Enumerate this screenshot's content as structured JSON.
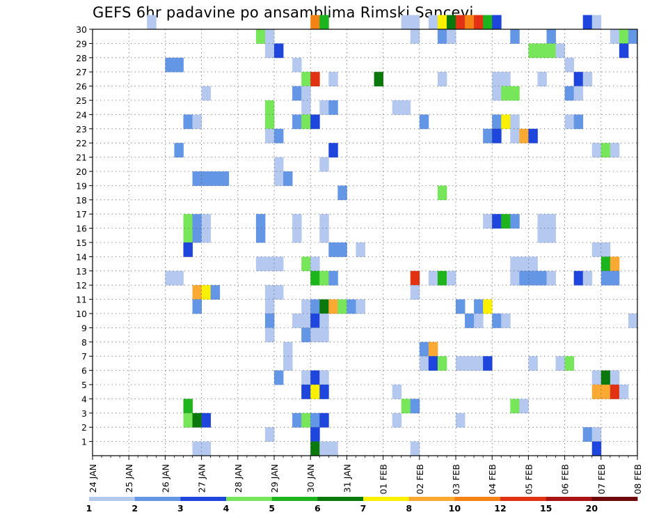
{
  "chart_data": {
    "type": "heatmap",
    "title": "GEFS 6hr padavine po ansamblima Rimski Sancevi",
    "xlabel": "",
    "ylabel": "",
    "x_tick_labels": [
      "24 JAN",
      "25 JAN",
      "26 JAN",
      "27 JAN",
      "28 JAN",
      "29 JAN",
      "30 JAN",
      "31 JAN",
      "01 FEB",
      "02 FEB",
      "03 FEB",
      "04 FEB",
      "05 FEB",
      "06 FEB",
      "07 FEB",
      "08 FEB"
    ],
    "y_tick_labels": [
      "1",
      "2",
      "3",
      "4",
      "5",
      "6",
      "7",
      "8",
      "9",
      "10",
      "11",
      "12",
      "13",
      "14",
      "15",
      "16",
      "17",
      "18",
      "19",
      "20",
      "21",
      "22",
      "23",
      "24",
      "25",
      "26",
      "27",
      "28",
      "29",
      "30"
    ],
    "x_steps_per_day": 4,
    "x_range_steps": [
      0,
      60
    ],
    "y_range": [
      0,
      30
    ],
    "grid": true,
    "legend": {
      "thresholds": [
        "1",
        "2",
        "3",
        "4",
        "5",
        "6",
        "7",
        "8",
        "10",
        "12",
        "15",
        "20"
      ],
      "colors": [
        "#b4c8f0",
        "#6496e6",
        "#1e46dc",
        "#78e65a",
        "#1eb41e",
        "#0a780a",
        "#faf000",
        "#faaa32",
        "#f58214",
        "#e13214",
        "#aa1414",
        "#6e0a0a"
      ]
    },
    "cells_note": "each cell: [time_step, member, color_class]; time_step counts 6-hour steps from 24 JAN 00Z; color_class indexes legend.colors",
    "cells": [
      [
        6,
        30,
        0
      ],
      [
        24,
        30,
        8
      ],
      [
        25,
        30,
        4
      ],
      [
        34,
        30,
        0
      ],
      [
        35,
        30,
        0
      ],
      [
        37,
        30,
        0
      ],
      [
        38,
        30,
        6
      ],
      [
        39,
        30,
        5
      ],
      [
        40,
        30,
        9
      ],
      [
        41,
        30,
        8
      ],
      [
        42,
        30,
        9
      ],
      [
        43,
        30,
        4
      ],
      [
        44,
        30,
        2
      ],
      [
        54,
        30,
        2
      ],
      [
        55,
        30,
        0
      ],
      [
        18,
        29,
        3
      ],
      [
        19,
        29,
        0
      ],
      [
        35,
        29,
        0
      ],
      [
        38,
        29,
        1
      ],
      [
        39,
        29,
        0
      ],
      [
        46,
        29,
        1
      ],
      [
        50,
        29,
        1
      ],
      [
        57,
        29,
        0
      ],
      [
        58,
        29,
        3
      ],
      [
        59,
        29,
        1
      ],
      [
        19,
        28,
        0
      ],
      [
        20,
        28,
        2
      ],
      [
        48,
        28,
        3
      ],
      [
        49,
        28,
        3
      ],
      [
        50,
        28,
        3
      ],
      [
        51,
        28,
        0
      ],
      [
        58,
        28,
        2
      ],
      [
        8,
        27,
        1
      ],
      [
        9,
        27,
        1
      ],
      [
        22,
        27,
        0
      ],
      [
        52,
        27,
        0
      ],
      [
        23,
        26,
        3
      ],
      [
        24,
        26,
        9
      ],
      [
        26,
        26,
        0
      ],
      [
        31,
        26,
        5
      ],
      [
        38,
        26,
        0
      ],
      [
        44,
        26,
        0
      ],
      [
        45,
        26,
        0
      ],
      [
        49,
        26,
        0
      ],
      [
        53,
        26,
        2
      ],
      [
        54,
        26,
        0
      ],
      [
        12,
        25,
        0
      ],
      [
        22,
        25,
        1
      ],
      [
        23,
        25,
        0
      ],
      [
        44,
        25,
        0
      ],
      [
        45,
        25,
        3
      ],
      [
        46,
        25,
        3
      ],
      [
        52,
        25,
        1
      ],
      [
        53,
        25,
        0
      ],
      [
        19,
        24,
        3
      ],
      [
        23,
        24,
        0
      ],
      [
        25,
        24,
        0
      ],
      [
        26,
        24,
        1
      ],
      [
        33,
        24,
        0
      ],
      [
        34,
        24,
        0
      ],
      [
        10,
        23,
        1
      ],
      [
        11,
        23,
        0
      ],
      [
        19,
        23,
        3
      ],
      [
        22,
        23,
        1
      ],
      [
        23,
        23,
        3
      ],
      [
        24,
        23,
        2
      ],
      [
        36,
        23,
        1
      ],
      [
        44,
        23,
        1
      ],
      [
        45,
        23,
        6
      ],
      [
        46,
        23,
        0
      ],
      [
        52,
        23,
        0
      ],
      [
        53,
        23,
        1
      ],
      [
        19,
        22,
        0
      ],
      [
        20,
        22,
        1
      ],
      [
        43,
        22,
        1
      ],
      [
        44,
        22,
        2
      ],
      [
        46,
        22,
        0
      ],
      [
        47,
        22,
        7
      ],
      [
        48,
        22,
        2
      ],
      [
        9,
        21,
        1
      ],
      [
        26,
        21,
        2
      ],
      [
        55,
        21,
        0
      ],
      [
        56,
        21,
        3
      ],
      [
        57,
        21,
        0
      ],
      [
        20,
        20,
        0
      ],
      [
        25,
        20,
        0
      ],
      [
        11,
        19,
        1
      ],
      [
        12,
        19,
        1
      ],
      [
        13,
        19,
        1
      ],
      [
        14,
        19,
        1
      ],
      [
        20,
        19,
        0
      ],
      [
        21,
        19,
        1
      ],
      [
        27,
        18,
        1
      ],
      [
        38,
        18,
        3
      ],
      [
        18,
        16,
        0
      ],
      [
        43,
        16,
        0
      ],
      [
        44,
        16,
        2
      ],
      [
        45,
        16,
        4
      ],
      [
        46,
        16,
        1
      ],
      [
        10,
        16,
        3
      ],
      [
        11,
        16,
        1
      ],
      [
        12,
        16,
        0
      ],
      [
        18,
        16,
        1
      ],
      [
        22,
        16,
        0
      ],
      [
        25,
        16,
        0
      ],
      [
        49,
        16,
        0
      ],
      [
        50,
        16,
        0
      ],
      [
        10,
        15,
        3
      ],
      [
        11,
        15,
        1
      ],
      [
        12,
        15,
        0
      ],
      [
        18,
        15,
        1
      ],
      [
        22,
        15,
        0
      ],
      [
        25,
        15,
        0
      ],
      [
        49,
        15,
        0
      ],
      [
        50,
        15,
        0
      ],
      [
        10,
        14,
        2
      ],
      [
        26,
        14,
        1
      ],
      [
        27,
        14,
        1
      ],
      [
        29,
        14,
        0
      ],
      [
        55,
        14,
        0
      ],
      [
        56,
        14,
        0
      ],
      [
        18,
        13,
        0
      ],
      [
        19,
        13,
        0
      ],
      [
        20,
        13,
        0
      ],
      [
        23,
        13,
        3
      ],
      [
        24,
        13,
        0
      ],
      [
        46,
        13,
        0
      ],
      [
        47,
        13,
        0
      ],
      [
        48,
        13,
        0
      ],
      [
        56,
        13,
        4
      ],
      [
        57,
        13,
        7
      ],
      [
        8,
        12,
        0
      ],
      [
        9,
        12,
        0
      ],
      [
        24,
        12,
        4
      ],
      [
        25,
        12,
        3
      ],
      [
        26,
        12,
        1
      ],
      [
        35,
        12,
        9
      ],
      [
        37,
        12,
        0
      ],
      [
        38,
        12,
        4
      ],
      [
        39,
        12,
        0
      ],
      [
        46,
        12,
        0
      ],
      [
        47,
        12,
        1
      ],
      [
        48,
        12,
        1
      ],
      [
        49,
        12,
        1
      ],
      [
        50,
        12,
        0
      ],
      [
        53,
        12,
        2
      ],
      [
        54,
        12,
        0
      ],
      [
        56,
        12,
        1
      ],
      [
        57,
        12,
        1
      ],
      [
        11,
        11,
        7
      ],
      [
        12,
        11,
        6
      ],
      [
        13,
        11,
        1
      ],
      [
        19,
        11,
        0
      ],
      [
        20,
        11,
        0
      ],
      [
        35,
        11,
        0
      ],
      [
        11,
        10,
        1
      ],
      [
        19,
        10,
        0
      ],
      [
        23,
        10,
        0
      ],
      [
        24,
        10,
        1
      ],
      [
        25,
        10,
        5
      ],
      [
        26,
        10,
        7
      ],
      [
        27,
        10,
        3
      ],
      [
        28,
        10,
        1
      ],
      [
        29,
        10,
        0
      ],
      [
        40,
        10,
        1
      ],
      [
        42,
        10,
        1
      ],
      [
        43,
        10,
        6
      ],
      [
        19,
        9,
        1
      ],
      [
        22,
        9,
        0
      ],
      [
        23,
        9,
        0
      ],
      [
        24,
        9,
        2
      ],
      [
        25,
        9,
        0
      ],
      [
        41,
        9,
        1
      ],
      [
        42,
        9,
        0
      ],
      [
        44,
        9,
        1
      ],
      [
        45,
        9,
        0
      ],
      [
        59,
        9,
        0
      ],
      [
        19,
        8,
        0
      ],
      [
        23,
        8,
        1
      ],
      [
        24,
        8,
        0
      ],
      [
        25,
        8,
        0
      ],
      [
        21,
        7,
        0
      ],
      [
        36,
        7,
        1
      ],
      [
        37,
        7,
        7
      ],
      [
        21,
        6,
        0
      ],
      [
        36,
        6,
        0
      ],
      [
        37,
        6,
        2
      ],
      [
        38,
        6,
        3
      ],
      [
        40,
        6,
        0
      ],
      [
        41,
        6,
        0
      ],
      [
        42,
        6,
        0
      ],
      [
        43,
        6,
        2
      ],
      [
        48,
        6,
        0
      ],
      [
        51,
        6,
        0
      ],
      [
        52,
        6,
        3
      ],
      [
        20,
        5,
        1
      ],
      [
        23,
        5,
        0
      ],
      [
        24,
        5,
        2
      ],
      [
        25,
        5,
        0
      ],
      [
        55,
        5,
        0
      ],
      [
        56,
        5,
        5
      ],
      [
        57,
        5,
        0
      ],
      [
        23,
        4,
        2
      ],
      [
        24,
        4,
        6
      ],
      [
        25,
        4,
        2
      ],
      [
        33,
        4,
        0
      ],
      [
        55,
        4,
        7
      ],
      [
        56,
        4,
        7
      ],
      [
        57,
        4,
        9
      ],
      [
        58,
        4,
        0
      ],
      [
        10,
        3,
        4
      ],
      [
        34,
        3,
        3
      ],
      [
        35,
        3,
        1
      ],
      [
        46,
        3,
        3
      ],
      [
        47,
        3,
        0
      ],
      [
        10,
        2,
        3
      ],
      [
        11,
        2,
        5
      ],
      [
        12,
        2,
        2
      ],
      [
        22,
        2,
        1
      ],
      [
        23,
        2,
        3
      ],
      [
        24,
        2,
        1
      ],
      [
        25,
        2,
        2
      ],
      [
        33,
        2,
        0
      ],
      [
        40,
        2,
        0
      ],
      [
        19,
        1,
        0
      ],
      [
        24,
        1,
        2
      ],
      [
        54,
        1,
        1
      ],
      [
        55,
        1,
        0
      ],
      [
        11,
        0,
        0
      ],
      [
        12,
        0,
        0
      ],
      [
        24,
        0,
        5
      ],
      [
        25,
        0,
        0
      ],
      [
        26,
        0,
        0
      ],
      [
        35,
        0,
        0
      ],
      [
        55,
        0,
        2
      ]
    ]
  }
}
